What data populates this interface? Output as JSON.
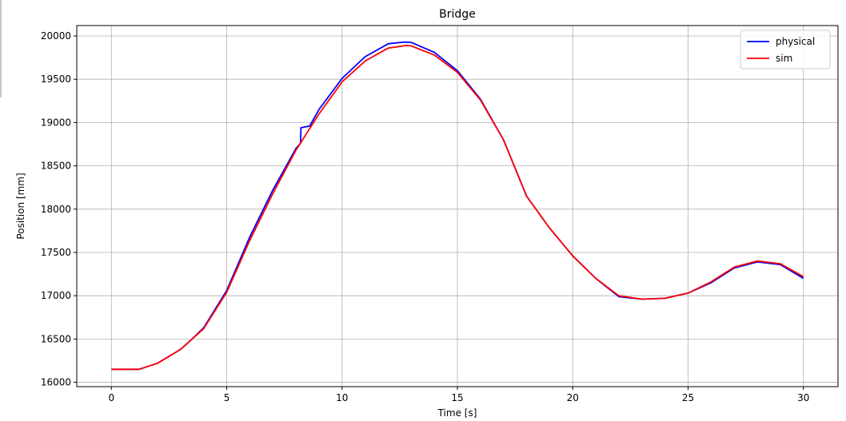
{
  "chart_data": {
    "type": "line",
    "title": "Bridge",
    "xlabel": "Time [s]",
    "ylabel": "Position [mm]",
    "xlim": [
      -1.5,
      31.5
    ],
    "ylim": [
      15950,
      20120
    ],
    "xticks": [
      0,
      5,
      10,
      15,
      20,
      25,
      30
    ],
    "yticks": [
      16000,
      16500,
      17000,
      17500,
      18000,
      18500,
      19000,
      19500,
      20000
    ],
    "grid": true,
    "legend_position": "top-right",
    "series": [
      {
        "name": "physical",
        "color": "#0000ff",
        "points": [
          [
            0,
            16150
          ],
          [
            1.2,
            16150
          ],
          [
            2,
            16220
          ],
          [
            3,
            16380
          ],
          [
            3.5,
            16500
          ],
          [
            4,
            16630
          ],
          [
            5,
            17060
          ],
          [
            6,
            17680
          ],
          [
            7,
            18220
          ],
          [
            8,
            18700
          ],
          [
            8.2,
            18760
          ],
          [
            8.22,
            18940
          ],
          [
            8.6,
            18960
          ],
          [
            9,
            19150
          ],
          [
            10,
            19510
          ],
          [
            11,
            19760
          ],
          [
            12,
            19910
          ],
          [
            12.7,
            19930
          ],
          [
            13,
            19925
          ],
          [
            14,
            19810
          ],
          [
            15,
            19600
          ],
          [
            16,
            19270
          ],
          [
            17,
            18800
          ],
          [
            18,
            18150
          ],
          [
            19,
            17780
          ],
          [
            20,
            17460
          ],
          [
            21,
            17200
          ],
          [
            22,
            16990
          ],
          [
            23,
            16960
          ],
          [
            24,
            16970
          ],
          [
            25,
            17030
          ],
          [
            26,
            17150
          ],
          [
            27,
            17320
          ],
          [
            28,
            17390
          ],
          [
            29,
            17360
          ],
          [
            30,
            17200
          ]
        ]
      },
      {
        "name": "sim",
        "color": "#ff0000",
        "points": [
          [
            0,
            16150
          ],
          [
            1.2,
            16150
          ],
          [
            2,
            16220
          ],
          [
            3,
            16380
          ],
          [
            3.5,
            16500
          ],
          [
            4,
            16620
          ],
          [
            5,
            17040
          ],
          [
            6,
            17640
          ],
          [
            7,
            18180
          ],
          [
            8,
            18680
          ],
          [
            9,
            19100
          ],
          [
            10,
            19470
          ],
          [
            11,
            19710
          ],
          [
            12,
            19860
          ],
          [
            12.8,
            19890
          ],
          [
            13,
            19885
          ],
          [
            14,
            19780
          ],
          [
            15,
            19580
          ],
          [
            16,
            19260
          ],
          [
            17,
            18800
          ],
          [
            18,
            18150
          ],
          [
            19,
            17780
          ],
          [
            20,
            17460
          ],
          [
            21,
            17200
          ],
          [
            22,
            17000
          ],
          [
            23,
            16960
          ],
          [
            24,
            16970
          ],
          [
            25,
            17030
          ],
          [
            26,
            17160
          ],
          [
            27,
            17330
          ],
          [
            28,
            17400
          ],
          [
            29,
            17370
          ],
          [
            30,
            17220
          ]
        ]
      }
    ]
  }
}
